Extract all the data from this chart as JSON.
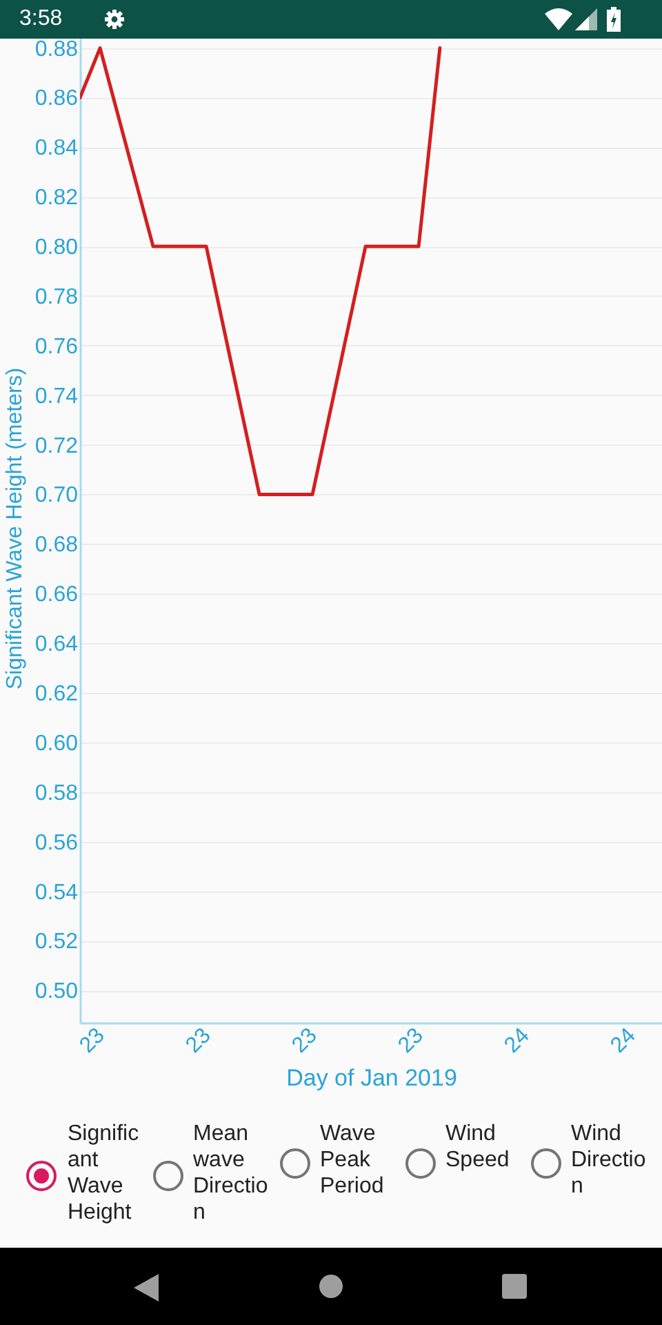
{
  "chart_data": {
    "type": "line",
    "xlabel": "Day of Jan  2019",
    "ylabel": "Significant Wave Height  (meters)",
    "x": [
      "2019-01-22T22:52",
      "2019-01-23T00:00",
      "2019-01-23T03:00",
      "2019-01-23T06:00",
      "2019-01-23T09:00",
      "2019-01-23T12:00",
      "2019-01-23T15:00",
      "2019-01-23T18:00",
      "2019-01-23T19:12"
    ],
    "series": [
      {
        "color": "#d41f1f",
        "values": [
          0.86,
          0.88,
          0.8,
          0.8,
          0.7,
          0.7,
          0.8,
          0.8,
          0.88
        ]
      }
    ],
    "xlim": [
      "2019-01-22T22:52",
      "2019-01-24T07:45"
    ],
    "ylim": [
      0.487,
      0.886
    ],
    "xticks": [
      {
        "value": "2019-01-23T00:00",
        "label": "23"
      },
      {
        "value": "2019-01-23T06:00",
        "label": "23"
      },
      {
        "value": "2019-01-23T12:00",
        "label": "23"
      },
      {
        "value": "2019-01-23T18:00",
        "label": "23"
      },
      {
        "value": "2019-01-24T00:00",
        "label": "24"
      },
      {
        "value": "2019-01-24T06:00",
        "label": "24"
      }
    ],
    "yticks": [
      {
        "value": 0.5,
        "label": "0.50"
      },
      0.52,
      0.54,
      0.56,
      0.58,
      {
        "value": 0.6,
        "label": "0.60"
      },
      0.62,
      0.64,
      0.66,
      0.68,
      {
        "value": 0.7,
        "label": "0.70"
      },
      0.72,
      0.74,
      0.76,
      0.78,
      {
        "value": 0.8,
        "label": "0.80"
      },
      0.82,
      0.84,
      0.86,
      0.88
    ],
    "grid": "y",
    "annotations": [
      "3:58",
      "Significant Wave Height",
      "Mean wave Direction",
      "Wave Peak Period",
      "Wind Speed",
      "Wind Direction"
    ]
  }
}
